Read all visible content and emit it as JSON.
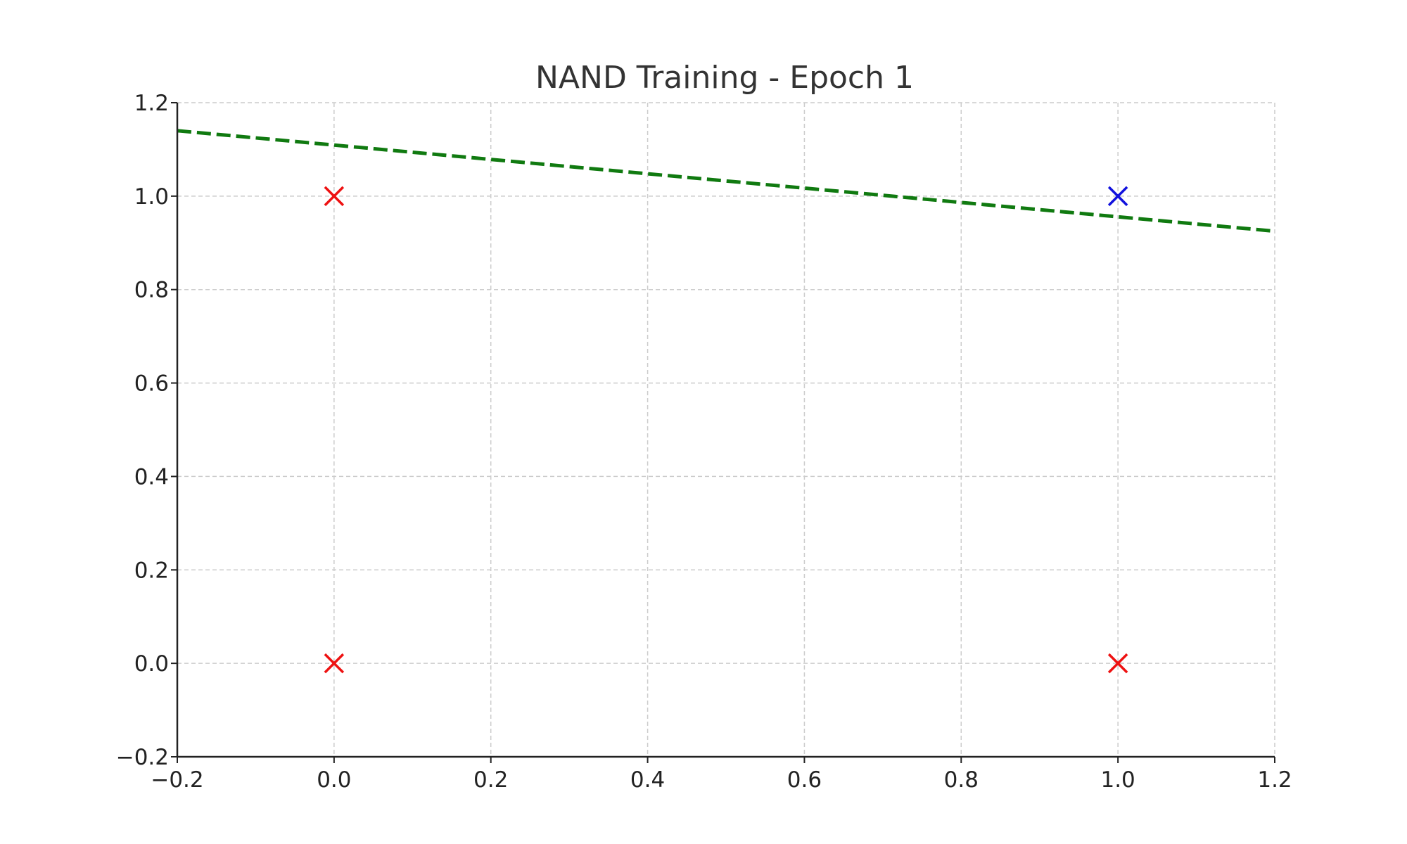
{
  "chart_data": {
    "type": "scatter",
    "title": "NAND Training - Epoch 1",
    "xlabel": "",
    "ylabel": "",
    "xlim": [
      -0.2,
      1.2
    ],
    "ylim": [
      -0.2,
      1.2
    ],
    "xticks": [
      -0.2,
      0.0,
      0.2,
      0.4,
      0.6,
      0.8,
      1.0,
      1.2
    ],
    "yticks": [
      -0.2,
      0.0,
      0.2,
      0.4,
      0.6,
      0.8,
      1.0,
      1.2
    ],
    "xtick_labels": [
      "−0.2",
      "0.0",
      "0.2",
      "0.4",
      "0.6",
      "0.8",
      "1.0",
      "1.2"
    ],
    "ytick_labels": [
      "−0.2",
      "0.0",
      "0.2",
      "0.4",
      "0.6",
      "0.8",
      "1.0",
      "1.2"
    ],
    "grid": true,
    "points": [
      {
        "x": 0,
        "y": 0,
        "color": "#ee1111",
        "marker": "x"
      },
      {
        "x": 0,
        "y": 1,
        "color": "#ee1111",
        "marker": "x"
      },
      {
        "x": 1,
        "y": 0,
        "color": "#ee1111",
        "marker": "x"
      },
      {
        "x": 1,
        "y": 1,
        "color": "#1111dd",
        "marker": "x"
      }
    ],
    "decision_boundary": {
      "x": [
        -0.2,
        1.2
      ],
      "y": [
        1.14,
        0.925
      ],
      "color": "#107a10",
      "style": "dashed"
    }
  }
}
